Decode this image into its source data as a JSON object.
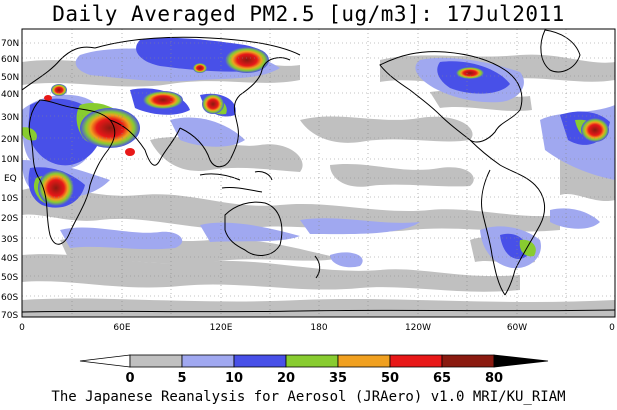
{
  "title": "Daily Averaged PM2.5 [ug/m3]: 17Jul2011",
  "footer": "The Japanese Reanalysis for Aerosol (JRAero) v1.0 MRI/KU_RIAM",
  "lat_labels": [
    "70N",
    "60N",
    "50N",
    "40N",
    "30N",
    "20N",
    "10N",
    "EQ",
    "10S",
    "20S",
    "30S",
    "40S",
    "50S",
    "60S",
    "70S"
  ],
  "lon_labels": [
    "0",
    "60E",
    "120E",
    "180",
    "120W",
    "60W",
    "0"
  ],
  "colorbar": {
    "ticks": [
      "0",
      "5",
      "10",
      "20",
      "35",
      "50",
      "65",
      "80"
    ],
    "colors": [
      "#ffffff",
      "#c0c0c0",
      "#a0a8f0",
      "#4850e8",
      "#88cc30",
      "#f0a020",
      "#e81818",
      "#8a1a10"
    ]
  }
}
